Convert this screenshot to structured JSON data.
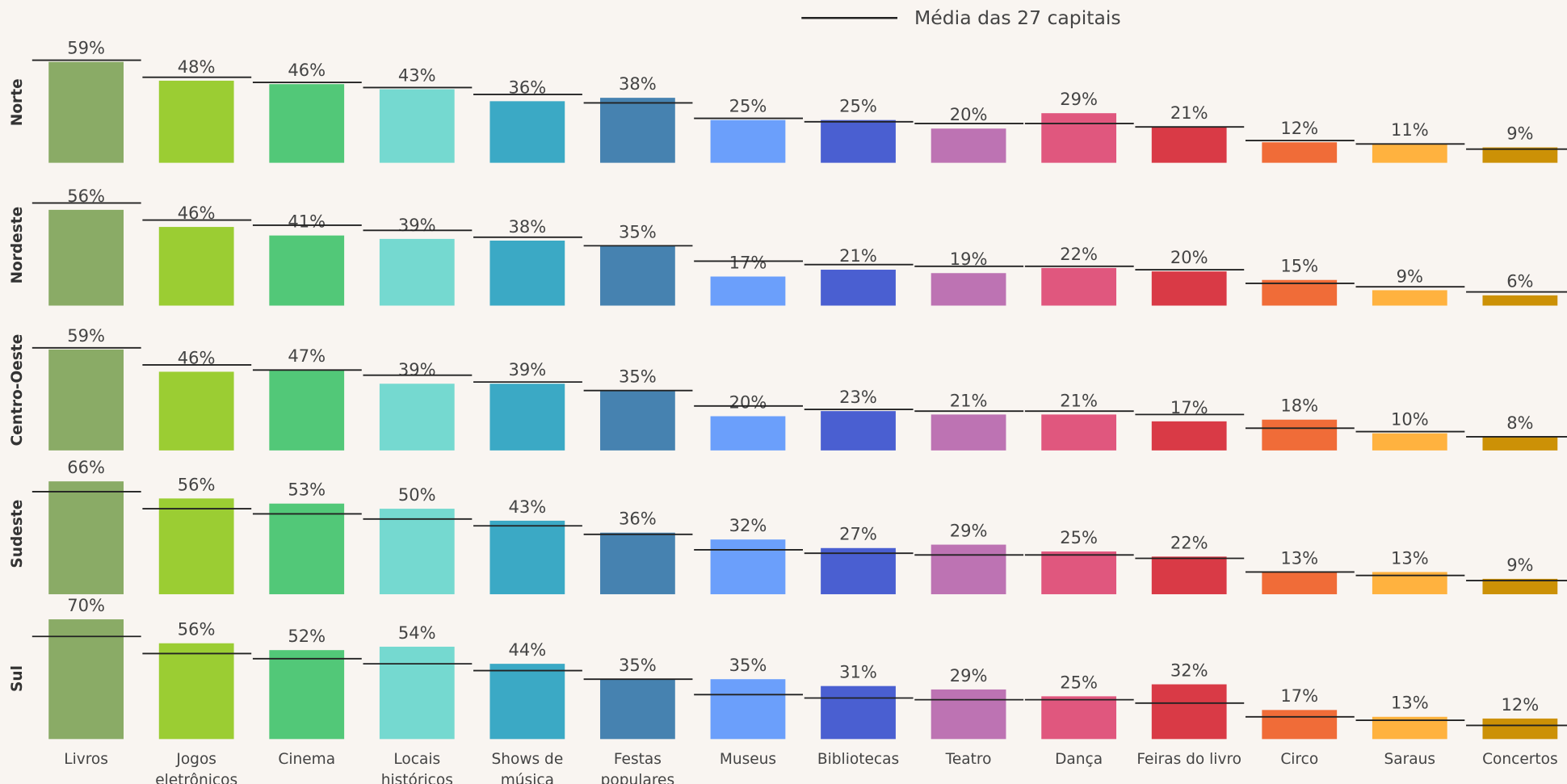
{
  "chart_data": {
    "type": "bar",
    "categories": [
      "Livros",
      "Jogos\neletrônicos",
      "Cinema",
      "Locais\nhistóricos",
      "Shows de\nmúsica",
      "Festas\npopulares",
      "Museus",
      "Bibliotecas",
      "Teatro",
      "Dança",
      "Feiras do livro",
      "Circo",
      "Saraus",
      "Concertos"
    ],
    "colors": [
      "#8aab66",
      "#9bcd33",
      "#52c878",
      "#75d9d0",
      "#3ba9c5",
      "#4682b0",
      "#6b9ffb",
      "#4a5fd1",
      "#bd73b3",
      "#e0577e",
      "#d93a46",
      "#f06c38",
      "#ffb23f",
      "#cc9106"
    ],
    "ylim": [
      0,
      80
    ],
    "series": [
      {
        "name": "Norte",
        "values": [
          59,
          48,
          46,
          43,
          36,
          38,
          25,
          25,
          20,
          29,
          21,
          12,
          11,
          9
        ],
        "value_labels": [
          "59%",
          "48%",
          "46%",
          "43%",
          "36%",
          "38%",
          "25%",
          "25%",
          "20%",
          "29%",
          "21%",
          "12%",
          "11%",
          "9%"
        ]
      },
      {
        "name": "Nordeste",
        "values": [
          56,
          46,
          41,
          39,
          38,
          35,
          17,
          21,
          19,
          22,
          20,
          15,
          9,
          6
        ],
        "value_labels": [
          "56%",
          "46%",
          "41%",
          "39%",
          "38%",
          "35%",
          "17%",
          "21%",
          "19%",
          "22%",
          "20%",
          "15%",
          "9%",
          "6%"
        ]
      },
      {
        "name": "Centro-Oeste",
        "values": [
          59,
          46,
          47,
          39,
          39,
          35,
          20,
          23,
          21,
          21,
          17,
          18,
          10,
          8
        ],
        "value_labels": [
          "59%",
          "46%",
          "47%",
          "39%",
          "39%",
          "35%",
          "20%",
          "23%",
          "21%",
          "21%",
          "17%",
          "18%",
          "10%",
          "8%"
        ]
      },
      {
        "name": "Sudeste",
        "values": [
          66,
          56,
          53,
          50,
          43,
          36,
          32,
          27,
          29,
          25,
          22,
          13,
          13,
          9
        ],
        "value_labels": [
          "66%",
          "56%",
          "53%",
          "50%",
          "43%",
          "36%",
          "32%",
          "27%",
          "29%",
          "25%",
          "22%",
          "13%",
          "13%",
          "9%"
        ]
      },
      {
        "name": "Sul",
        "values": [
          70,
          56,
          52,
          54,
          44,
          35,
          35,
          31,
          29,
          25,
          32,
          17,
          13,
          12
        ],
        "value_labels": [
          "70%",
          "56%",
          "52%",
          "54%",
          "44%",
          "35%",
          "35%",
          "31%",
          "29%",
          "25%",
          "32%",
          "17%",
          "13%",
          "12%"
        ]
      }
    ],
    "reference": {
      "name": "Média das 27 capitais",
      "color": "#222222",
      "values": [
        60,
        50,
        47,
        44,
        40,
        35,
        26,
        24,
        23,
        23,
        21,
        13,
        11,
        8
      ]
    }
  }
}
